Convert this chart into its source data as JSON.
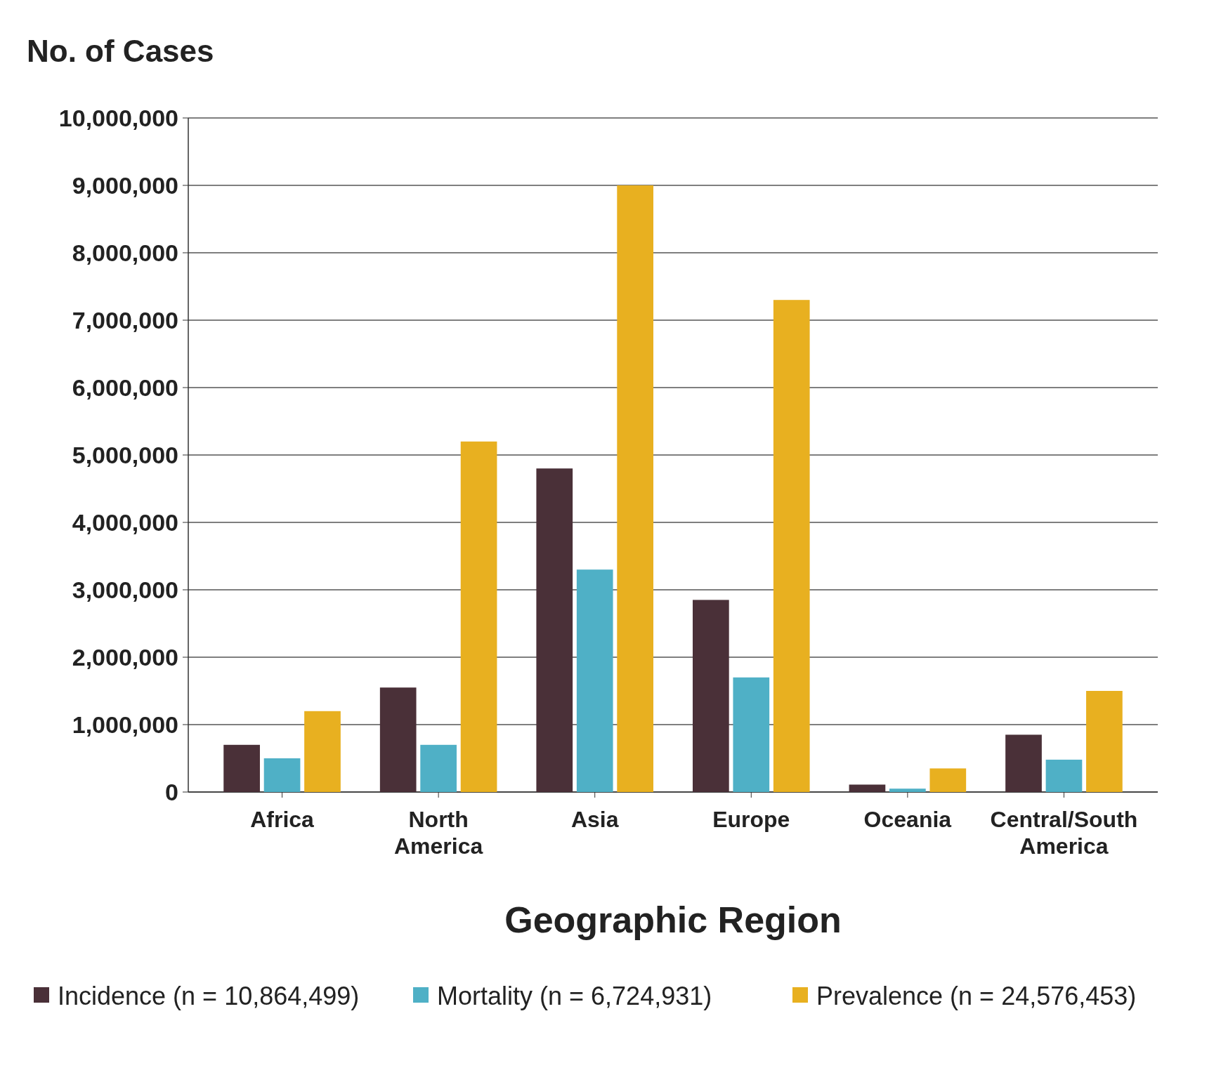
{
  "chart_data": {
    "type": "bar",
    "ylabel": "No. of Cases",
    "xlabel": "Geographic Region",
    "categories": [
      "Africa",
      "North America",
      "Asia",
      "Europe",
      "Oceania",
      "Central/South America"
    ],
    "series": [
      {
        "name": "Incidence (n = 10,864,499)",
        "color": "#4a3038",
        "values": [
          700000,
          1550000,
          4800000,
          2850000,
          110000,
          850000
        ]
      },
      {
        "name": "Mortality (n = 6,724,931)",
        "color": "#4fb0c6",
        "values": [
          500000,
          700000,
          3300000,
          1700000,
          50000,
          480000
        ]
      },
      {
        "name": "Prevalence (n = 24,576,453)",
        "color": "#e8b020",
        "values": [
          1200000,
          5200000,
          9000000,
          7300000,
          350000,
          1500000
        ]
      }
    ],
    "ylim": [
      0,
      10000000
    ],
    "yticks": [
      0,
      {
        "value": 1000000,
        "label": "1,000,000"
      },
      {
        "value": 2000000,
        "label": "2,000,000"
      },
      {
        "value": 3000000,
        "label": "3,000,000"
      },
      {
        "value": 4000000,
        "label": "4,000,000"
      },
      {
        "value": 5000000,
        "label": "5,000,000"
      },
      {
        "value": 6000000,
        "label": "6,000,000"
      },
      {
        "value": 7000000,
        "label": "7,000,000"
      },
      {
        "value": 8000000,
        "label": "8,000,000"
      },
      {
        "value": 9000000,
        "label": "9,000,000"
      },
      {
        "value": 10000000,
        "label": "10,000,000"
      }
    ],
    "grid": "y",
    "legend": "bottom"
  }
}
